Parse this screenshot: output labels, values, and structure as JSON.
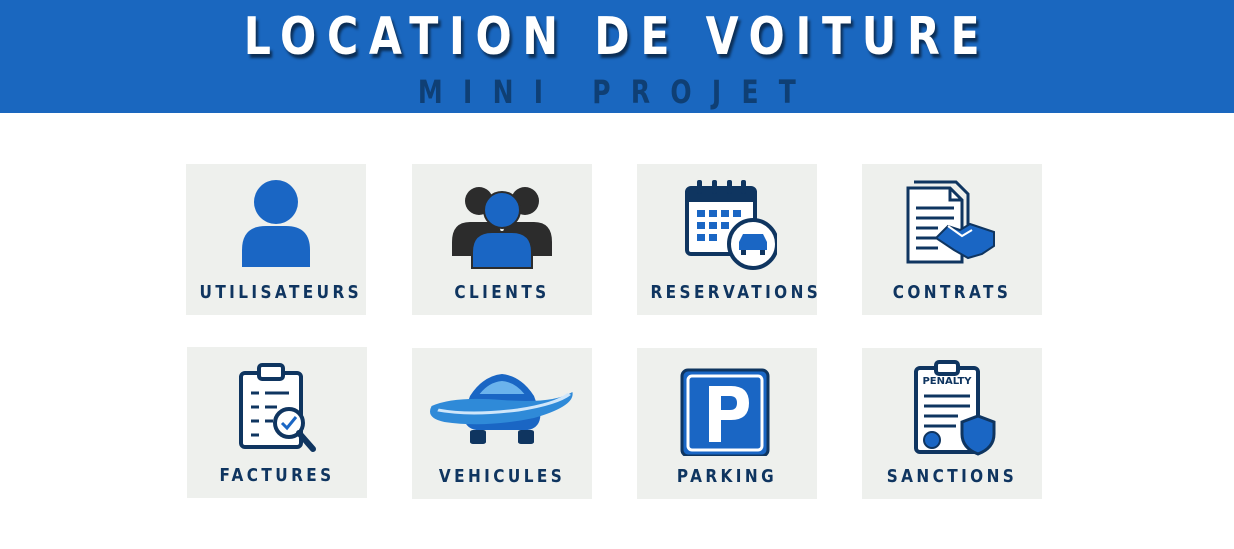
{
  "header": {
    "title": "LOCATION DE VOITURE",
    "subtitle": "MINI PROJET"
  },
  "tiles": [
    {
      "label": "UTILISATEURS",
      "icon": "user-icon"
    },
    {
      "label": "CLIENTS",
      "icon": "users-group-icon"
    },
    {
      "label": "RESERVATIONS",
      "icon": "calendar-car-icon"
    },
    {
      "label": "CONTRATS",
      "icon": "contract-handshake-icon"
    },
    {
      "label": "FACTURES",
      "icon": "invoice-clipboard-icon"
    },
    {
      "label": "VEHICULES",
      "icon": "car-icon"
    },
    {
      "label": "PARKING",
      "icon": "parking-icon"
    },
    {
      "label": "SANCTIONS",
      "icon": "penalty-shield-icon",
      "icon_text": "PENALTY"
    }
  ],
  "colors": {
    "header_bg": "#1a67bf",
    "subtitle": "#0f3f74",
    "tile_bg": "#eef0ed",
    "icon_blue": "#1a66c4",
    "icon_dark": "#0f3560"
  }
}
